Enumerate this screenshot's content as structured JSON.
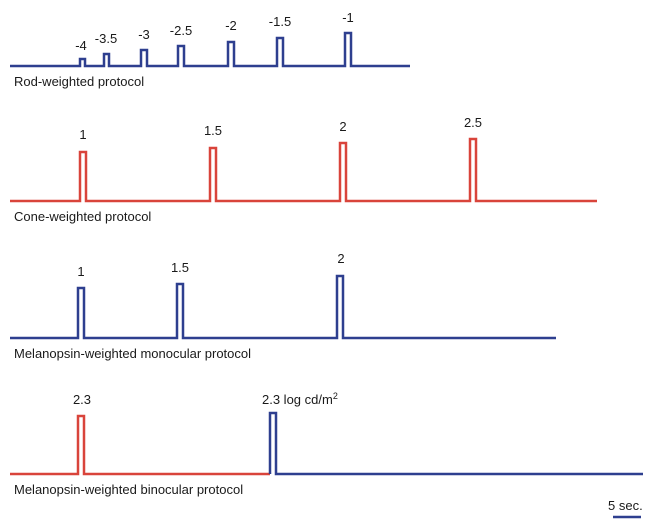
{
  "colors": {
    "blue": "#2e3f8f",
    "red": "#d9443b",
    "text": "#1a1a1a"
  },
  "protocols": [
    {
      "label": "Rod-weighted protocol",
      "stimuli": [
        "-4",
        "-3.5",
        "-3",
        "-2.5",
        "-2",
        "-1.5",
        "-1"
      ]
    },
    {
      "label": "Cone-weighted protocol",
      "stimuli": [
        "1",
        "1.5",
        "2",
        "2.5"
      ]
    },
    {
      "label": "Melanopsin-weighted monocular protocol",
      "stimuli": [
        "1",
        "1.5",
        "2"
      ]
    },
    {
      "label": "Melanopsin-weighted binocular protocol",
      "stimuli": [
        "2.3",
        "2.3 log cd/m"
      ],
      "unit_superscript": "2"
    }
  ],
  "scale_bar": {
    "label": "5 sec."
  }
}
